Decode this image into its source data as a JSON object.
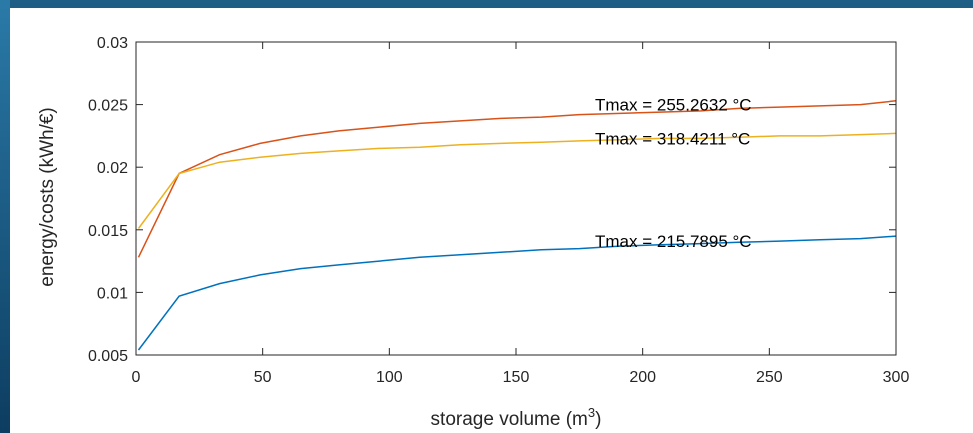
{
  "chart_data": {
    "type": "line",
    "title": "",
    "xlabel": "storage volume (m",
    "xlabel_sup": "3",
    "xlabel_end": ")",
    "ylabel": "energy/costs (kWh/€)",
    "xlim": [
      0,
      300
    ],
    "ylim": [
      0.005,
      0.03
    ],
    "xticks": [
      0,
      50,
      100,
      150,
      200,
      250,
      300
    ],
    "xtick_labels": [
      "0",
      "50",
      "100",
      "150",
      "200",
      "250",
      "300"
    ],
    "yticks": [
      0.005,
      0.01,
      0.015,
      0.02,
      0.025,
      0.03
    ],
    "ytick_labels": [
      "0.005",
      "0.01",
      "0.015",
      "0.02",
      "0.025",
      "0.03"
    ],
    "grid": false,
    "x": [
      1,
      17,
      33,
      49,
      65,
      80,
      96,
      112,
      128,
      144,
      160,
      175,
      191,
      207,
      223,
      238,
      254,
      270,
      286,
      300
    ],
    "series": [
      {
        "color": "#0072BD",
        "values": [
          0.0054,
          0.0097,
          0.0107,
          0.0114,
          0.0119,
          0.0122,
          0.0125,
          0.0128,
          0.013,
          0.0132,
          0.0134,
          0.0135,
          0.0137,
          0.0138,
          0.0139,
          0.014,
          0.0141,
          0.0142,
          0.0143,
          0.0145
        ]
      },
      {
        "color": "#D95319",
        "values": [
          0.0128,
          0.0195,
          0.021,
          0.0219,
          0.0225,
          0.0229,
          0.0232,
          0.0235,
          0.0237,
          0.0239,
          0.024,
          0.0242,
          0.0243,
          0.0244,
          0.0245,
          0.0247,
          0.0248,
          0.0249,
          0.025,
          0.0253
        ]
      },
      {
        "color": "#EDB120",
        "values": [
          0.0151,
          0.0195,
          0.0204,
          0.0208,
          0.0211,
          0.0213,
          0.0215,
          0.0216,
          0.0218,
          0.0219,
          0.022,
          0.0221,
          0.0222,
          0.0223,
          0.0223,
          0.0224,
          0.0225,
          0.0225,
          0.0226,
          0.0227
        ]
      }
    ],
    "annotations": [
      {
        "text": "Tmax = 255.2632 °C",
        "x": 180,
        "y": 0.025
      },
      {
        "text": "Tmax = 318.4211 °C",
        "x": 180,
        "y": 0.0223
      },
      {
        "text": "Tmax = 215.7895 °C",
        "x": 180,
        "y": 0.0141
      }
    ]
  }
}
